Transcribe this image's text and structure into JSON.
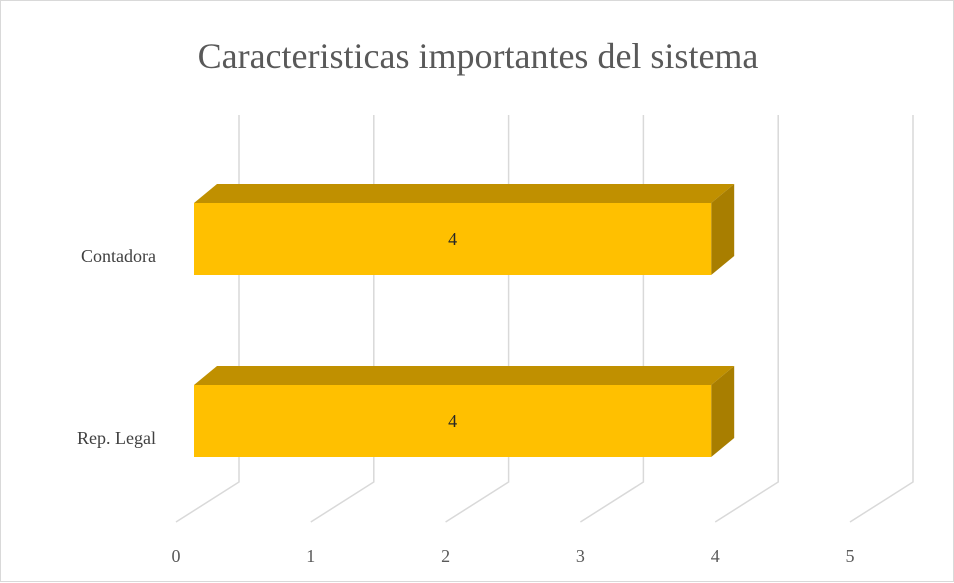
{
  "chart_data": {
    "type": "bar",
    "orientation": "horizontal",
    "style": "3d",
    "title": "Caracteristicas importantes del sistema",
    "categories": [
      "Contadora",
      "Rep. Legal"
    ],
    "series": [
      {
        "values": [
          4,
          4
        ]
      }
    ],
    "data_labels": [
      "4",
      "4"
    ],
    "xlim": [
      0,
      5
    ],
    "x_ticks": [
      "0",
      "1",
      "2",
      "3",
      "4",
      "5"
    ],
    "grid": true,
    "legend": "none",
    "colors": {
      "bar_front": "#FFC000",
      "bar_top": "#C09000",
      "bar_side": "#A87E00",
      "grid": "#D9D9D9"
    }
  }
}
